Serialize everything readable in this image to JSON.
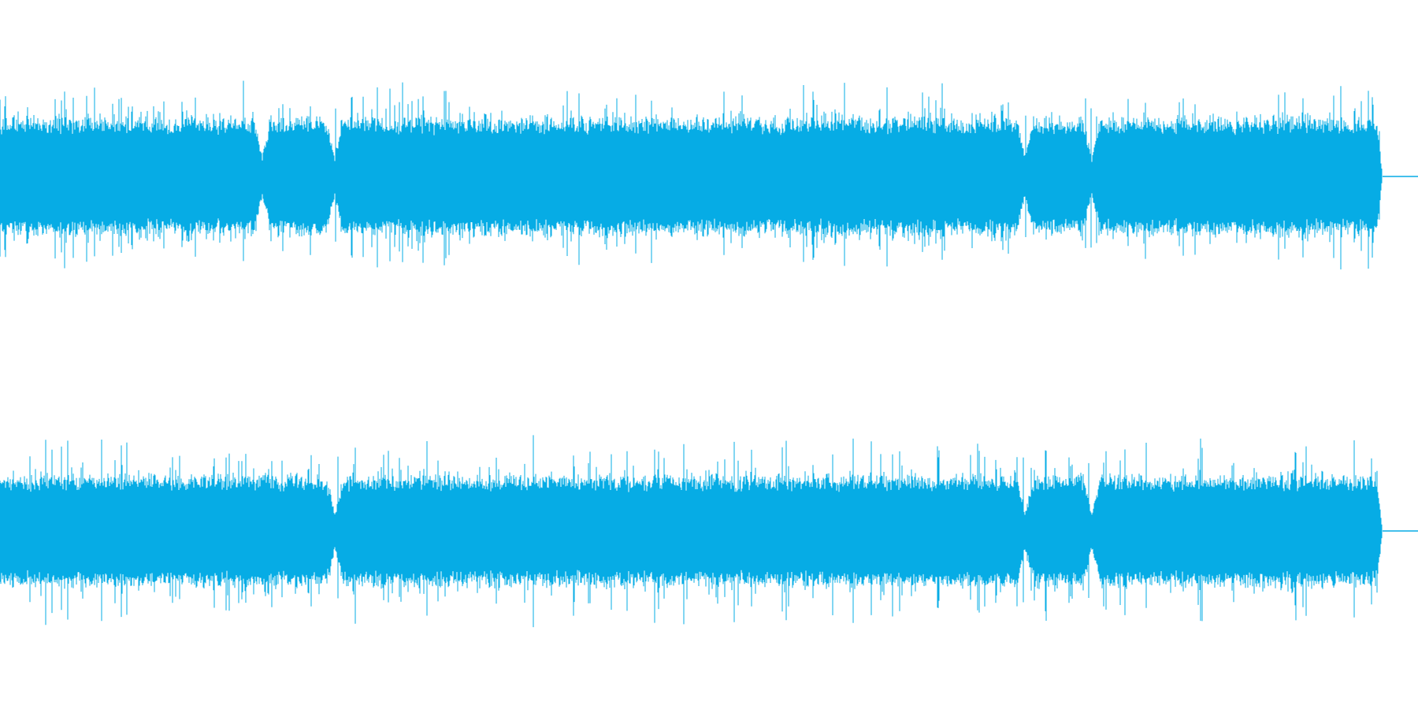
{
  "waveform": {
    "color": "#06ACE5",
    "background": "#FFFFFF",
    "channels": [
      {
        "id": "left",
        "gaps": [
          0.185,
          0.236,
          0.723,
          0.77
        ],
        "peak_amplitude": 0.55,
        "body_amplitude": 0.35
      },
      {
        "id": "right",
        "gaps": [
          0.236,
          0.723,
          0.77
        ],
        "peak_amplitude": 0.55,
        "body_amplitude": 0.33
      }
    ],
    "audio_end_fraction": 0.975
  }
}
